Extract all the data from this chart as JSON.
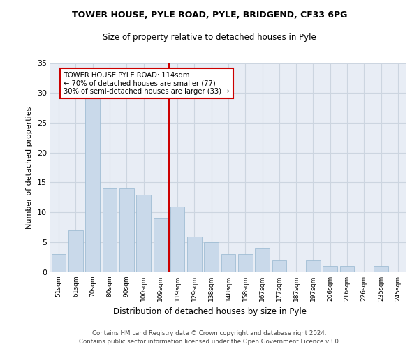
{
  "title1": "TOWER HOUSE, PYLE ROAD, PYLE, BRIDGEND, CF33 6PG",
  "title2": "Size of property relative to detached houses in Pyle",
  "xlabel": "Distribution of detached houses by size in Pyle",
  "ylabel": "Number of detached properties",
  "categories": [
    "51sqm",
    "61sqm",
    "70sqm",
    "80sqm",
    "90sqm",
    "100sqm",
    "109sqm",
    "119sqm",
    "129sqm",
    "138sqm",
    "148sqm",
    "158sqm",
    "167sqm",
    "177sqm",
    "187sqm",
    "197sqm",
    "206sqm",
    "216sqm",
    "226sqm",
    "235sqm",
    "245sqm"
  ],
  "values": [
    3,
    7,
    29,
    14,
    14,
    13,
    9,
    11,
    6,
    5,
    3,
    3,
    4,
    2,
    0,
    2,
    1,
    1,
    0,
    1,
    0
  ],
  "bar_color": "#c9d9ea",
  "bar_edge_color": "#a0bdd4",
  "vline_index": 7,
  "annotation_line1": "TOWER HOUSE PYLE ROAD: 114sqm",
  "annotation_line2": "← 70% of detached houses are smaller (77)",
  "annotation_line3": "30% of semi-detached houses are larger (33) →",
  "annotation_box_color": "#ffffff",
  "annotation_box_edge_color": "#cc0000",
  "vline_color": "#cc0000",
  "grid_color": "#ccd5e0",
  "background_color": "#e8edf5",
  "ylim": [
    0,
    35
  ],
  "yticks": [
    0,
    5,
    10,
    15,
    20,
    25,
    30,
    35
  ],
  "footer1": "Contains HM Land Registry data © Crown copyright and database right 2024.",
  "footer2": "Contains public sector information licensed under the Open Government Licence v3.0."
}
